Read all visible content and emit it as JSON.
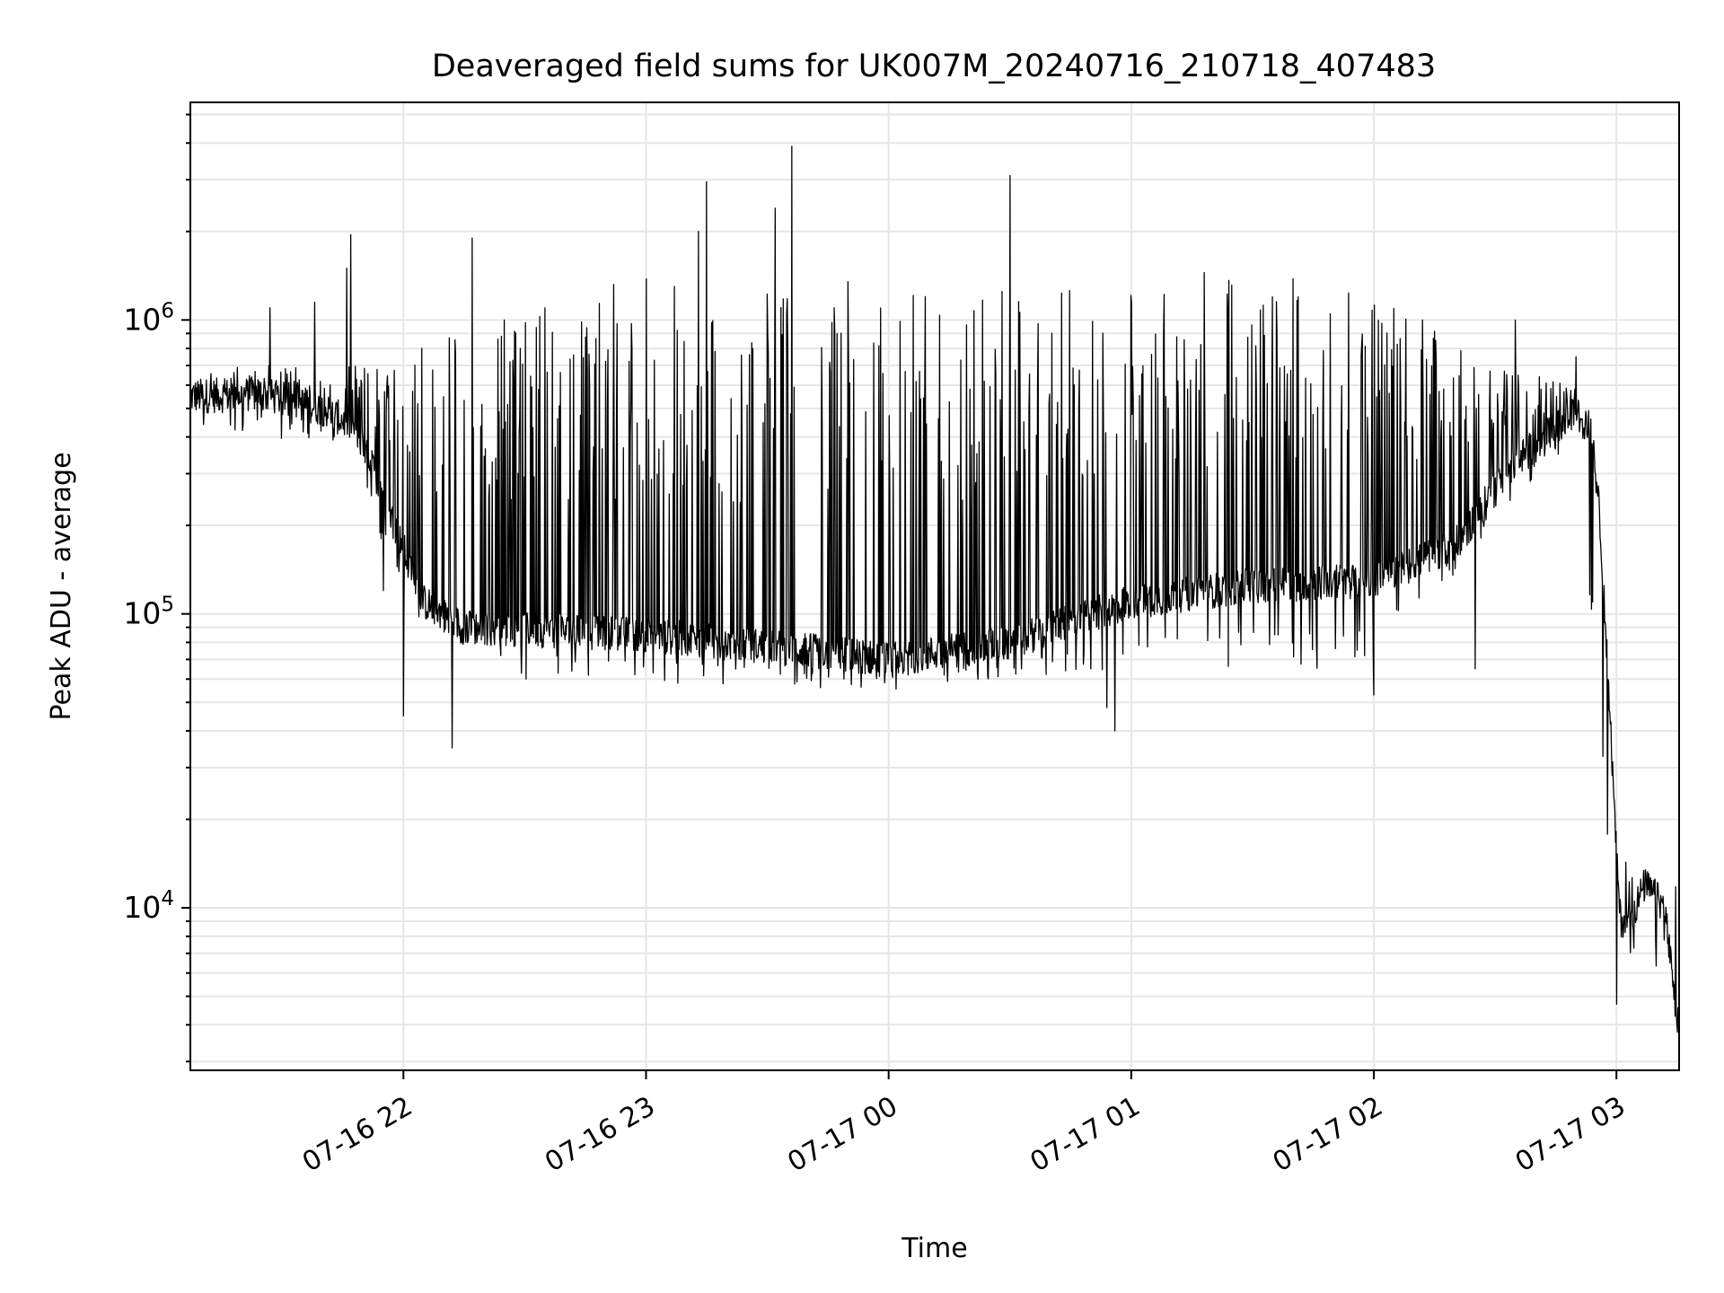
{
  "chart_data": {
    "type": "line",
    "title": "Deaveraged field sums for UK007M_20240716_210718_407483",
    "xlabel": "Time",
    "ylabel": "Peak ADU - average",
    "y_scale": "log",
    "grid": true,
    "grid_minor": true,
    "line_color": "#000000",
    "grid_color": "#e6e6e6",
    "x_start": "2024-07-16 21:07:18",
    "x_end": "2024-07-17 03:15:30",
    "xlim": [
      "2024-07-16 21:07:18",
      "2024-07-17 03:15:30"
    ],
    "ylim": [
      2800,
      5500000
    ],
    "x_ticks": [
      {
        "value": "2024-07-16 22:00",
        "label": "07-16 22"
      },
      {
        "value": "2024-07-16 23:00",
        "label": "07-16 23"
      },
      {
        "value": "2024-07-17 00:00",
        "label": "07-17 00"
      },
      {
        "value": "2024-07-17 01:00",
        "label": "07-17 01"
      },
      {
        "value": "2024-07-17 02:00",
        "label": "07-17 02"
      },
      {
        "value": "2024-07-17 03:00",
        "label": "07-17 03"
      }
    ],
    "y_ticks": [
      {
        "value": 10000,
        "base": "10",
        "exp": "4"
      },
      {
        "value": 100000,
        "base": "10",
        "exp": "5"
      },
      {
        "value": 1000000,
        "base": "10",
        "exp": "6"
      }
    ],
    "baseline": [
      {
        "x": "2024-07-16 21:07",
        "y": 550000
      },
      {
        "x": "2024-07-16 21:25",
        "y": 560000
      },
      {
        "x": "2024-07-16 21:40",
        "y": 500000
      },
      {
        "x": "2024-07-16 21:47",
        "y": 440000
      },
      {
        "x": "2024-07-16 21:53",
        "y": 300000
      },
      {
        "x": "2024-07-16 21:59",
        "y": 180000
      },
      {
        "x": "2024-07-16 22:05",
        "y": 110000
      },
      {
        "x": "2024-07-16 22:15",
        "y": 90000
      },
      {
        "x": "2024-07-16 23:00",
        "y": 85000
      },
      {
        "x": "2024-07-16 23:40",
        "y": 75000
      },
      {
        "x": "2024-07-17 00:00",
        "y": 70000
      },
      {
        "x": "2024-07-17 00:30",
        "y": 80000
      },
      {
        "x": "2024-07-17 01:00",
        "y": 110000
      },
      {
        "x": "2024-07-17 01:30",
        "y": 125000
      },
      {
        "x": "2024-07-17 02:00",
        "y": 130000
      },
      {
        "x": "2024-07-17 02:20",
        "y": 170000
      },
      {
        "x": "2024-07-17 02:35",
        "y": 330000
      },
      {
        "x": "2024-07-17 02:50",
        "y": 480000
      },
      {
        "x": "2024-07-17 02:54",
        "y": 420000
      },
      {
        "x": "2024-07-17 02:56",
        "y": 200000
      },
      {
        "x": "2024-07-17 02:58",
        "y": 60000
      },
      {
        "x": "2024-07-17 03:00",
        "y": 15000
      },
      {
        "x": "2024-07-17 03:01",
        "y": 9000
      },
      {
        "x": "2024-07-17 03:04",
        "y": 9500
      },
      {
        "x": "2024-07-17 03:07",
        "y": 12000
      },
      {
        "x": "2024-07-17 03:12",
        "y": 10000
      },
      {
        "x": "2024-07-17 03:15",
        "y": 4000
      }
    ],
    "upper_envelope": [
      {
        "x": "2024-07-16 21:07",
        "y": 700000
      },
      {
        "x": "2024-07-16 21:50",
        "y": 700000
      },
      {
        "x": "2024-07-16 22:00",
        "y": 900000
      },
      {
        "x": "2024-07-16 22:30",
        "y": 1000000
      },
      {
        "x": "2024-07-16 23:00",
        "y": 1250000
      },
      {
        "x": "2024-07-17 00:00",
        "y": 1250000
      },
      {
        "x": "2024-07-17 01:00",
        "y": 1300000
      },
      {
        "x": "2024-07-17 01:30",
        "y": 1400000
      },
      {
        "x": "2024-07-17 02:00",
        "y": 1200000
      },
      {
        "x": "2024-07-17 02:30",
        "y": 700000
      },
      {
        "x": "2024-07-17 02:50",
        "y": 600000
      },
      {
        "x": "2024-07-17 03:00",
        "y": 15000
      },
      {
        "x": "2024-07-17 03:15",
        "y": 14000
      }
    ],
    "lower_envelope": [
      {
        "x": "2024-07-16 21:07",
        "y": 420000
      },
      {
        "x": "2024-07-16 21:45",
        "y": 380000
      },
      {
        "x": "2024-07-16 22:00",
        "y": 100000
      },
      {
        "x": "2024-07-16 22:30",
        "y": 60000
      },
      {
        "x": "2024-07-17 00:00",
        "y": 55000
      },
      {
        "x": "2024-07-17 01:00",
        "y": 65000
      },
      {
        "x": "2024-07-17 02:00",
        "y": 65000
      },
      {
        "x": "2024-07-17 02:30",
        "y": 200000
      },
      {
        "x": "2024-07-17 02:50",
        "y": 400000
      },
      {
        "x": "2024-07-17 03:00",
        "y": 6000
      }
    ],
    "spikes": [
      {
        "x": "2024-07-16 21:27",
        "y": 1100000
      },
      {
        "x": "2024-07-16 21:38",
        "y": 1150000
      },
      {
        "x": "2024-07-16 21:46",
        "y": 1500000
      },
      {
        "x": "2024-07-16 21:47",
        "y": 1950000
      },
      {
        "x": "2024-07-16 21:55",
        "y": 660000
      },
      {
        "x": "2024-07-16 21:55",
        "y": 120000
      },
      {
        "x": "2024-07-16 22:00",
        "y": 45000
      },
      {
        "x": "2024-07-16 22:17",
        "y": 1900000
      },
      {
        "x": "2024-07-16 22:12",
        "y": 35000
      },
      {
        "x": "2024-07-16 22:25",
        "y": 1000000
      },
      {
        "x": "2024-07-16 22:35",
        "y": 1100000
      },
      {
        "x": "2024-07-16 22:52",
        "y": 1320000
      },
      {
        "x": "2024-07-16 23:00",
        "y": 1380000
      },
      {
        "x": "2024-07-16 23:07",
        "y": 1300000
      },
      {
        "x": "2024-07-16 23:13",
        "y": 2000000
      },
      {
        "x": "2024-07-16 23:15",
        "y": 2950000
      },
      {
        "x": "2024-07-16 23:32",
        "y": 2400000
      },
      {
        "x": "2024-07-16 23:36",
        "y": 3900000
      },
      {
        "x": "2024-07-16 23:50",
        "y": 1350000
      },
      {
        "x": "2024-07-17 00:28",
        "y": 1250000
      },
      {
        "x": "2024-07-17 00:30",
        "y": 3100000
      },
      {
        "x": "2024-07-17 00:54",
        "y": 48000
      },
      {
        "x": "2024-07-17 00:56",
        "y": 40000
      },
      {
        "x": "2024-07-17 01:18",
        "y": 1450000
      },
      {
        "x": "2024-07-17 01:40",
        "y": 1380000
      },
      {
        "x": "2024-07-17 02:00",
        "y": 53000
      },
      {
        "x": "2024-07-17 02:12",
        "y": 1000000
      },
      {
        "x": "2024-07-17 02:25",
        "y": 65000
      },
      {
        "x": "2024-07-17 02:35",
        "y": 1000000
      },
      {
        "x": "2024-07-17 02:50",
        "y": 750000
      },
      {
        "x": "2024-07-17 03:00",
        "y": 4700
      }
    ]
  }
}
